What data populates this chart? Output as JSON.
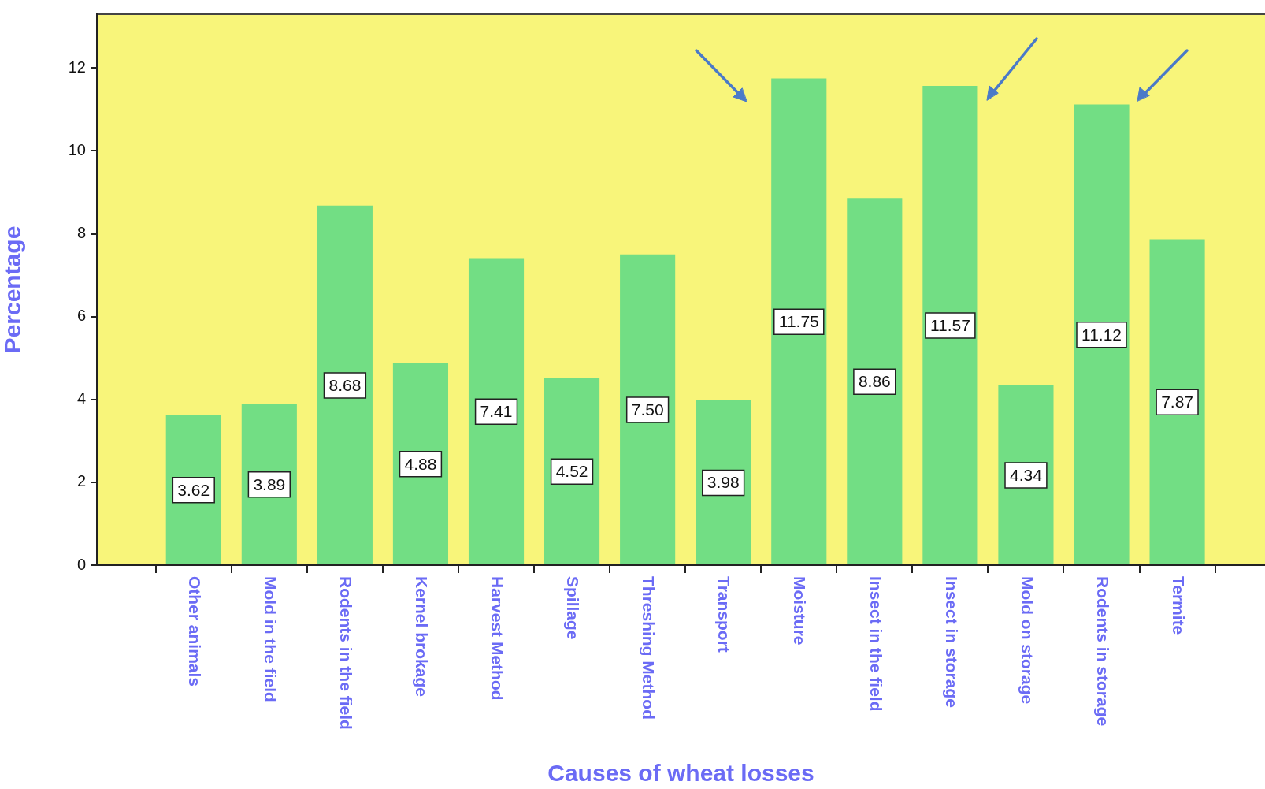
{
  "chart_data": {
    "type": "bar",
    "xlabel": "Causes of wheat losses",
    "ylabel": "Percentage",
    "categories": [
      "Other animals",
      "Mold in the field",
      "Rodents in the field",
      "Kernel brokage",
      "Harvest Method",
      "Spillage",
      "Threshing Method",
      "Transport",
      "Moisture",
      "Insect in the field",
      "Insect in storage",
      "Mold on storage",
      "Rodents in storage",
      "Termite"
    ],
    "values": [
      3.62,
      3.89,
      8.68,
      4.88,
      7.41,
      4.52,
      7.5,
      3.98,
      11.75,
      8.86,
      11.57,
      4.34,
      11.12,
      7.87
    ],
    "value_labels": [
      "3.62",
      "3.89",
      "8.68",
      "4.88",
      "7.41",
      "4.52",
      "7.50",
      "3.98",
      "11.75",
      "8.86",
      "11.57",
      "4.34",
      "11.12",
      "7.87"
    ],
    "color": "#72de84",
    "ylim": [
      0,
      13.3
    ],
    "yticks": [
      0,
      2,
      4,
      6,
      8,
      10,
      12
    ]
  }
}
